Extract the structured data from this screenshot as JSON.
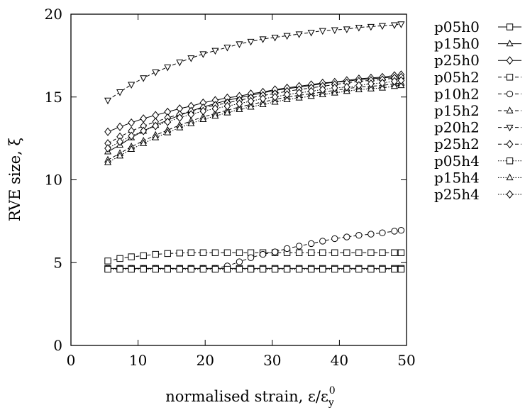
{
  "chart_data": {
    "type": "line",
    "xlabel": "normalised strain, ε/ε",
    "xlabel_sub": "y",
    "xlabel_sup": "0",
    "ylabel": "RVE size, ξ",
    "xlim": [
      0,
      50
    ],
    "ylim": [
      0,
      20
    ],
    "x_ticks": [
      "0",
      "10",
      "20",
      "30",
      "40",
      "50"
    ],
    "y_ticks": [
      "0",
      "5",
      "10",
      "15",
      "20"
    ],
    "grid": false,
    "legend_position": "right-outside",
    "x": [
      5.5,
      7.3,
      9.0,
      10.8,
      12.6,
      14.4,
      16.2,
      17.9,
      19.7,
      21.5,
      23.3,
      25.1,
      26.8,
      28.6,
      30.4,
      32.2,
      34.0,
      35.8,
      37.5,
      39.3,
      41.1,
      42.9,
      44.7,
      46.4,
      48.2,
      49.2
    ],
    "series": [
      {
        "name": "p05h0",
        "marker": "square",
        "dash": "solid",
        "values": [
          4.65,
          4.65,
          4.65,
          4.65,
          4.65,
          4.65,
          4.65,
          4.65,
          4.65,
          4.65,
          4.65,
          4.65,
          4.65,
          4.65,
          4.65,
          4.65,
          4.65,
          4.65,
          4.65,
          4.65,
          4.65,
          4.65,
          4.65,
          4.65,
          4.65,
          4.65
        ]
      },
      {
        "name": "p15h0",
        "marker": "triangle-up",
        "dash": "solid",
        "values": [
          11.7,
          12.1,
          12.55,
          12.95,
          13.3,
          13.6,
          13.9,
          14.15,
          14.4,
          14.6,
          14.8,
          14.95,
          15.1,
          15.25,
          15.4,
          15.5,
          15.6,
          15.7,
          15.8,
          15.9,
          15.95,
          16.05,
          16.1,
          16.15,
          16.2,
          16.25
        ]
      },
      {
        "name": "p25h0",
        "marker": "diamond",
        "dash": "solid",
        "values": [
          12.9,
          13.2,
          13.45,
          13.7,
          13.9,
          14.1,
          14.3,
          14.45,
          14.65,
          14.8,
          14.95,
          15.05,
          15.2,
          15.3,
          15.45,
          15.55,
          15.65,
          15.75,
          15.85,
          15.9,
          16.0,
          16.1,
          16.15,
          16.2,
          16.3,
          16.35
        ]
      },
      {
        "name": "p05h2",
        "marker": "square",
        "dash": "dashed",
        "values": [
          5.1,
          5.25,
          5.35,
          5.42,
          5.5,
          5.55,
          5.58,
          5.6,
          5.6,
          5.6,
          5.6,
          5.6,
          5.6,
          5.6,
          5.6,
          5.6,
          5.6,
          5.6,
          5.6,
          5.6,
          5.6,
          5.6,
          5.6,
          5.6,
          5.6,
          5.6
        ]
      },
      {
        "name": "p10h2",
        "marker": "circle",
        "dash": "dashed",
        "values": [
          4.65,
          4.65,
          4.65,
          4.65,
          4.65,
          4.65,
          4.65,
          4.65,
          4.65,
          4.65,
          4.8,
          5.05,
          5.3,
          5.5,
          5.65,
          5.85,
          6.0,
          6.15,
          6.3,
          6.45,
          6.55,
          6.65,
          6.72,
          6.8,
          6.9,
          6.95
        ]
      },
      {
        "name": "p15h2",
        "marker": "triangle-up",
        "dash": "dashed",
        "values": [
          11.2,
          11.6,
          12.0,
          12.35,
          12.7,
          13.0,
          13.3,
          13.55,
          13.8,
          14.0,
          14.2,
          14.4,
          14.55,
          14.7,
          14.85,
          15.0,
          15.1,
          15.2,
          15.3,
          15.4,
          15.5,
          15.6,
          15.65,
          15.7,
          15.8,
          15.85
        ]
      },
      {
        "name": "p20h2",
        "marker": "triangle-down",
        "dash": "dashed",
        "values": [
          14.8,
          15.3,
          15.75,
          16.15,
          16.5,
          16.8,
          17.1,
          17.35,
          17.6,
          17.8,
          18.0,
          18.2,
          18.35,
          18.5,
          18.6,
          18.7,
          18.8,
          18.9,
          19.0,
          19.05,
          19.1,
          19.2,
          19.25,
          19.3,
          19.35,
          19.4
        ]
      },
      {
        "name": "p25h2",
        "marker": "diamond",
        "dash": "dashed",
        "values": [
          12.2,
          12.6,
          12.95,
          13.25,
          13.5,
          13.75,
          13.95,
          14.15,
          14.35,
          14.5,
          14.65,
          14.8,
          14.95,
          15.1,
          15.2,
          15.35,
          15.45,
          15.55,
          15.65,
          15.75,
          15.85,
          15.95,
          16.0,
          16.05,
          16.15,
          16.2
        ]
      },
      {
        "name": "p05h4",
        "marker": "square",
        "dash": "dotted",
        "values": [
          4.6,
          4.6,
          4.6,
          4.6,
          4.6,
          4.6,
          4.6,
          4.6,
          4.6,
          4.6,
          4.6,
          4.6,
          4.6,
          4.6,
          4.6,
          4.6,
          4.6,
          4.6,
          4.6,
          4.6,
          4.6,
          4.6,
          4.6,
          4.6,
          4.6,
          4.6
        ]
      },
      {
        "name": "p15h4",
        "marker": "triangle-up",
        "dash": "dotted",
        "values": [
          11.05,
          11.45,
          11.85,
          12.2,
          12.55,
          12.85,
          13.15,
          13.4,
          13.65,
          13.85,
          14.05,
          14.25,
          14.4,
          14.55,
          14.7,
          14.85,
          14.95,
          15.05,
          15.15,
          15.25,
          15.35,
          15.45,
          15.5,
          15.55,
          15.65,
          15.7
        ]
      },
      {
        "name": "p25h4",
        "marker": "diamond",
        "dash": "dotted",
        "values": [
          11.9,
          12.3,
          12.65,
          12.95,
          13.25,
          13.5,
          13.75,
          13.95,
          14.15,
          14.3,
          14.45,
          14.6,
          14.75,
          14.9,
          15.0,
          15.15,
          15.25,
          15.35,
          15.45,
          15.55,
          15.6,
          15.7,
          15.8,
          15.85,
          15.95,
          16.0
        ]
      }
    ]
  }
}
